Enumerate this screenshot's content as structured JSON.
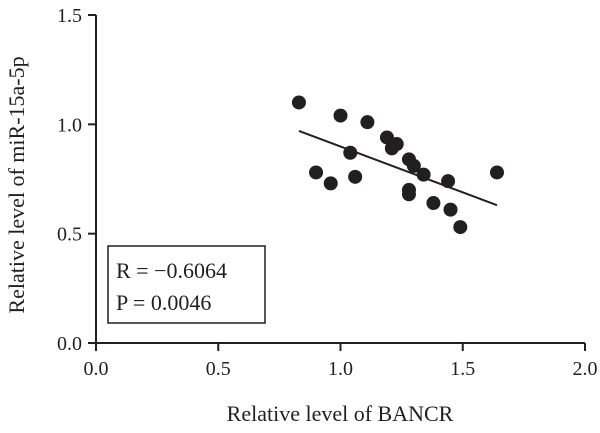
{
  "chart_data": {
    "type": "scatter",
    "xlabel": "Relative level of BANCR",
    "ylabel": "Relative level of miR-15a-5p",
    "xlim": [
      0.0,
      2.0
    ],
    "ylim": [
      0.0,
      1.5
    ],
    "xticks": [
      "0.0",
      "0.5",
      "1.0",
      "1.5",
      "2.0"
    ],
    "yticks": [
      "0.0",
      "0.5",
      "1.0",
      "1.5"
    ],
    "grid": false,
    "points": [
      {
        "x": 0.83,
        "y": 1.1
      },
      {
        "x": 0.9,
        "y": 0.78
      },
      {
        "x": 0.96,
        "y": 0.73
      },
      {
        "x": 1.0,
        "y": 1.04
      },
      {
        "x": 1.04,
        "y": 0.87
      },
      {
        "x": 1.06,
        "y": 0.76
      },
      {
        "x": 1.11,
        "y": 1.01
      },
      {
        "x": 1.19,
        "y": 0.94
      },
      {
        "x": 1.21,
        "y": 0.89
      },
      {
        "x": 1.23,
        "y": 0.91
      },
      {
        "x": 1.28,
        "y": 0.84
      },
      {
        "x": 1.3,
        "y": 0.81
      },
      {
        "x": 1.34,
        "y": 0.77
      },
      {
        "x": 1.28,
        "y": 0.7
      },
      {
        "x": 1.28,
        "y": 0.68
      },
      {
        "x": 1.38,
        "y": 0.64
      },
      {
        "x": 1.44,
        "y": 0.74
      },
      {
        "x": 1.45,
        "y": 0.61
      },
      {
        "x": 1.49,
        "y": 0.53
      },
      {
        "x": 1.64,
        "y": 0.78
      }
    ],
    "fit_line": {
      "x": [
        0.83,
        1.64
      ],
      "y": [
        0.97,
        0.63
      ]
    },
    "annotations": {
      "r_text": "R = −0.6064",
      "p_text": "P = 0.0046"
    },
    "colors": {
      "marker": "#231f20",
      "line": "#231f20",
      "axis": "#231f20"
    }
  }
}
